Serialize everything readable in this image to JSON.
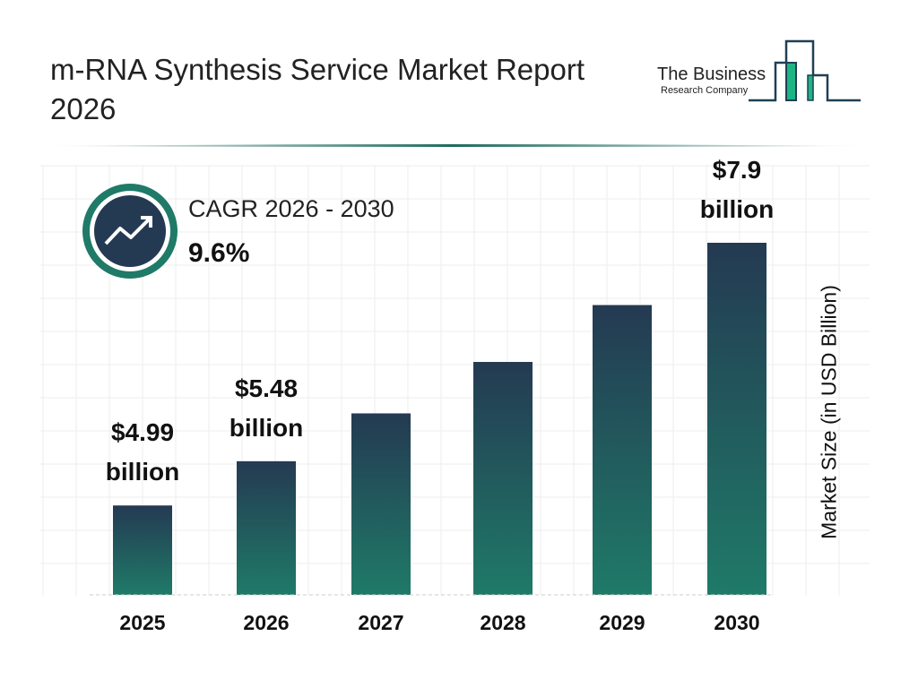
{
  "header": {
    "title": "m-RNA Synthesis Service Market Report 2026"
  },
  "logo": {
    "line1": "The Business",
    "line2": "Research Company"
  },
  "cagr": {
    "label": "CAGR 2026 - 2030",
    "value": "9.6%",
    "icon": "trending-up-icon"
  },
  "colors": {
    "bar_top": "#243a52",
    "bar_bottom": "#1f7a68",
    "accent": "#1f7a68"
  },
  "chart_data": {
    "type": "bar",
    "categories": [
      "2025",
      "2026",
      "2027",
      "2028",
      "2029",
      "2030"
    ],
    "values": [
      4.99,
      5.48,
      6.01,
      6.58,
      7.21,
      7.9
    ],
    "data_labels": [
      [
        "$4.99",
        "billion"
      ],
      [
        "$5.48",
        "billion"
      ],
      null,
      null,
      null,
      [
        "$7.9",
        "billion"
      ]
    ],
    "title": "",
    "xlabel": "",
    "ylabel": "Market Size (in USD Billion)",
    "grid": true
  }
}
